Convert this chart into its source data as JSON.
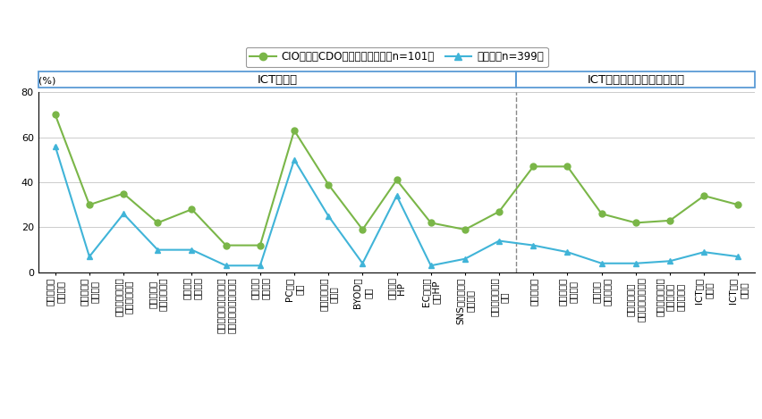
{
  "categories": [
    "社内ネット\nワーク化",
    "社外ネット\nワーク化",
    "インターネット\n接続サービス",
    "パッケージ\nソフトウェア",
    "クラウド\nサービス",
    "ホスティングサービス\n・ハウジングサービス",
    "独自業務\nシステム",
    "PC等の\n利用",
    "モバイル端末\nの利用",
    "BYODの\n許可",
    "外部向け\nHP",
    "EC機能を\n持つHP",
    "SNSアカウント\n等の活用",
    "インターネット\n広告",
    "テレワーク",
    "サテライト\nオフィス",
    "クラウド\nソーシング",
    "海外企業への\nアウトソーシング",
    "国内の地方企業\nへのアウト\nソーシング",
    "ICT人材\nの育成",
    "ICT人材\nの雇用"
  ],
  "series1_values": [
    70,
    30,
    35,
    22,
    28,
    12,
    12,
    63,
    39,
    19,
    41,
    22,
    19,
    27,
    47,
    47,
    26,
    22,
    23,
    34,
    30
  ],
  "series2_values": [
    56,
    7,
    26,
    10,
    10,
    3,
    3,
    50,
    25,
    4,
    34,
    3,
    6,
    14,
    12,
    9,
    4,
    4,
    5,
    9,
    7
  ],
  "series1_label": "CIOまたはCDO設置済・検討中（n=101）",
  "series2_label": "その他（n=399）",
  "series1_color": "#7ab648",
  "series2_color": "#40b4d8",
  "ylabel": "(%)",
  "ylim": [
    0,
    80
  ],
  "yticks": [
    0,
    20,
    40,
    60,
    80
  ],
  "group1_label": "ICTの導入",
  "group2_label": "ICTによる雇用や労働力強化",
  "divider_idx": 13.5,
  "background_color": "#ffffff",
  "grid_color": "#cccccc",
  "box_color": "#5b9bd5"
}
